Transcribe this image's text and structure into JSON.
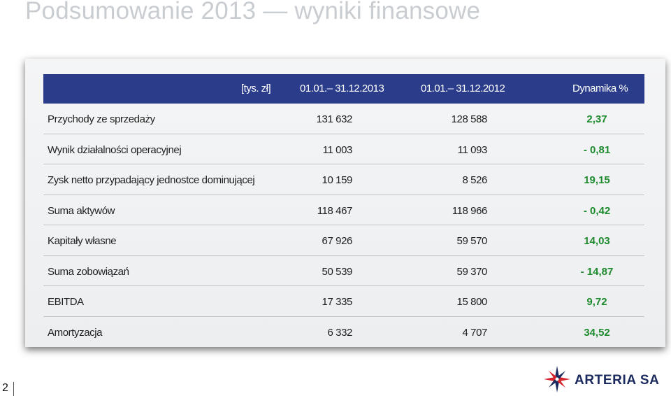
{
  "title": "Podsumowanie 2013 — wyniki finansowe",
  "table": {
    "header": {
      "unit": "[tys. zł]",
      "col1": "01.01.– 31.12.2013",
      "col2": "01.01.– 31.12.2012",
      "dynamics": "Dynamika %"
    },
    "rows": [
      {
        "label": "Przychody ze sprzedaży",
        "v2013": "131 632",
        "v2012": "128 588",
        "dyn": "2,37"
      },
      {
        "label": "Wynik działalności operacyjnej",
        "v2013": "11 003",
        "v2012": "11 093",
        "dyn": "- 0,81"
      },
      {
        "label": "Zysk netto przypadający jednostce dominującej",
        "v2013": "10 159",
        "v2012": "8 526",
        "dyn": "19,15"
      },
      {
        "label": "Suma aktywów",
        "v2013": "118 467",
        "v2012": "118 966",
        "dyn": "- 0,42"
      },
      {
        "label": "Kapitały własne",
        "v2013": "67 926",
        "v2012": "59 570",
        "dyn": "14,03"
      },
      {
        "label": "Suma zobowiązań",
        "v2013": "50 539",
        "v2012": "59 370",
        "dyn": "- 14,87"
      },
      {
        "label": "EBITDA",
        "v2013": "17 335",
        "v2012": "15 800",
        "dyn": "9,72"
      },
      {
        "label": "Amortyzacja",
        "v2013": "6 332",
        "v2012": "4 707",
        "dyn": "34,52"
      }
    ]
  },
  "footer": {
    "page_number": "2",
    "logo_text": "ARTERIA SA",
    "logo_icon": "compass-star-icon"
  },
  "colors": {
    "header_bg": "#2b3d8a",
    "dynamics_text": "#1e8a2e",
    "title_text": "#c9ccd0",
    "logo_navy": "#1b2a5e",
    "logo_red": "#d4232b"
  }
}
